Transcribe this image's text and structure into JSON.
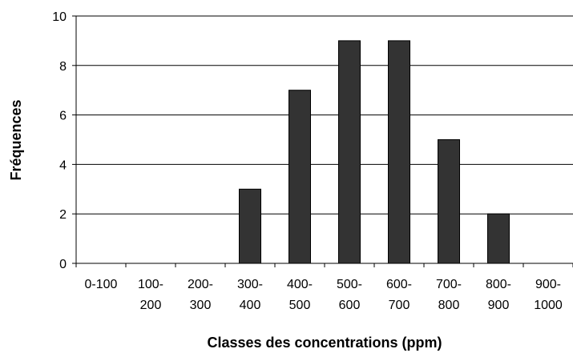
{
  "chart_data": {
    "type": "bar",
    "categories": [
      "0-100",
      "100-200",
      "200-300",
      "300-400",
      "400-500",
      "500-600",
      "600-700",
      "700-800",
      "800-900",
      "900-1000"
    ],
    "values": [
      0,
      0,
      0,
      3,
      7,
      9,
      9,
      5,
      2,
      0
    ],
    "color": "#333333",
    "x_label": "Classes des concentrations (ppm)",
    "y_label": "Fréquences",
    "ylim": [
      0,
      10
    ],
    "yticks": [
      0,
      2,
      4,
      6,
      8,
      10
    ],
    "grid": true
  }
}
